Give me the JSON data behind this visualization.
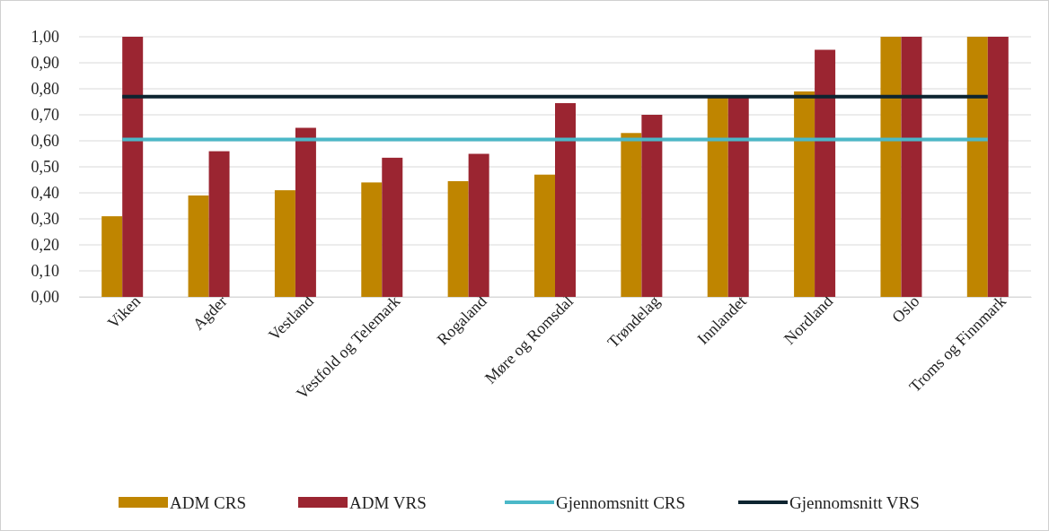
{
  "chart_data": {
    "type": "bar",
    "categories": [
      "Viken",
      "Agder",
      "Vestland",
      "Vestfold og Telemark",
      "Rogaland",
      "Møre og Romsdal",
      "Trøndelag",
      "Innlandet",
      "Nordland",
      "Oslo",
      "Troms og Finnmark"
    ],
    "series": [
      {
        "name": "ADM CRS",
        "color": "#bf8500",
        "values": [
          0.31,
          0.39,
          0.41,
          0.44,
          0.445,
          0.47,
          0.63,
          0.77,
          0.79,
          1.0,
          1.0
        ]
      },
      {
        "name": "ADM VRS",
        "color": "#9b2531",
        "values": [
          1.0,
          0.56,
          0.65,
          0.535,
          0.55,
          0.745,
          0.7,
          0.77,
          0.95,
          1.0,
          1.0
        ]
      },
      {
        "name": "Gjennomsnitt CRS",
        "type": "line",
        "color": "#4bb8c8",
        "values": [
          0.605,
          0.605,
          0.605,
          0.605,
          0.605,
          0.605,
          0.605,
          0.605,
          0.605,
          0.605,
          0.605
        ]
      },
      {
        "name": "Gjennomsnitt VRS",
        "type": "line",
        "color": "#0d2430",
        "values": [
          0.77,
          0.77,
          0.77,
          0.77,
          0.77,
          0.77,
          0.77,
          0.77,
          0.77,
          0.77,
          0.77
        ]
      }
    ],
    "ylim": [
      0,
      1
    ],
    "yticks": [
      {
        "value": 0,
        "label": "0,00"
      },
      {
        "value": 0.1,
        "label": "0,10"
      },
      {
        "value": 0.2,
        "label": "0,20"
      },
      {
        "value": 0.3,
        "label": "0,30"
      },
      {
        "value": 0.4,
        "label": "0,40"
      },
      {
        "value": 0.5,
        "label": "0,50"
      },
      {
        "value": 0.6,
        "label": "0,60"
      },
      {
        "value": 0.7,
        "label": "0,70"
      },
      {
        "value": 0.8,
        "label": "0,80"
      },
      {
        "value": 0.9,
        "label": "0,90"
      },
      {
        "value": 1,
        "label": "1,00"
      }
    ],
    "grid": "y",
    "legend": "bottom",
    "marker": "none",
    "line_style": "solid"
  }
}
